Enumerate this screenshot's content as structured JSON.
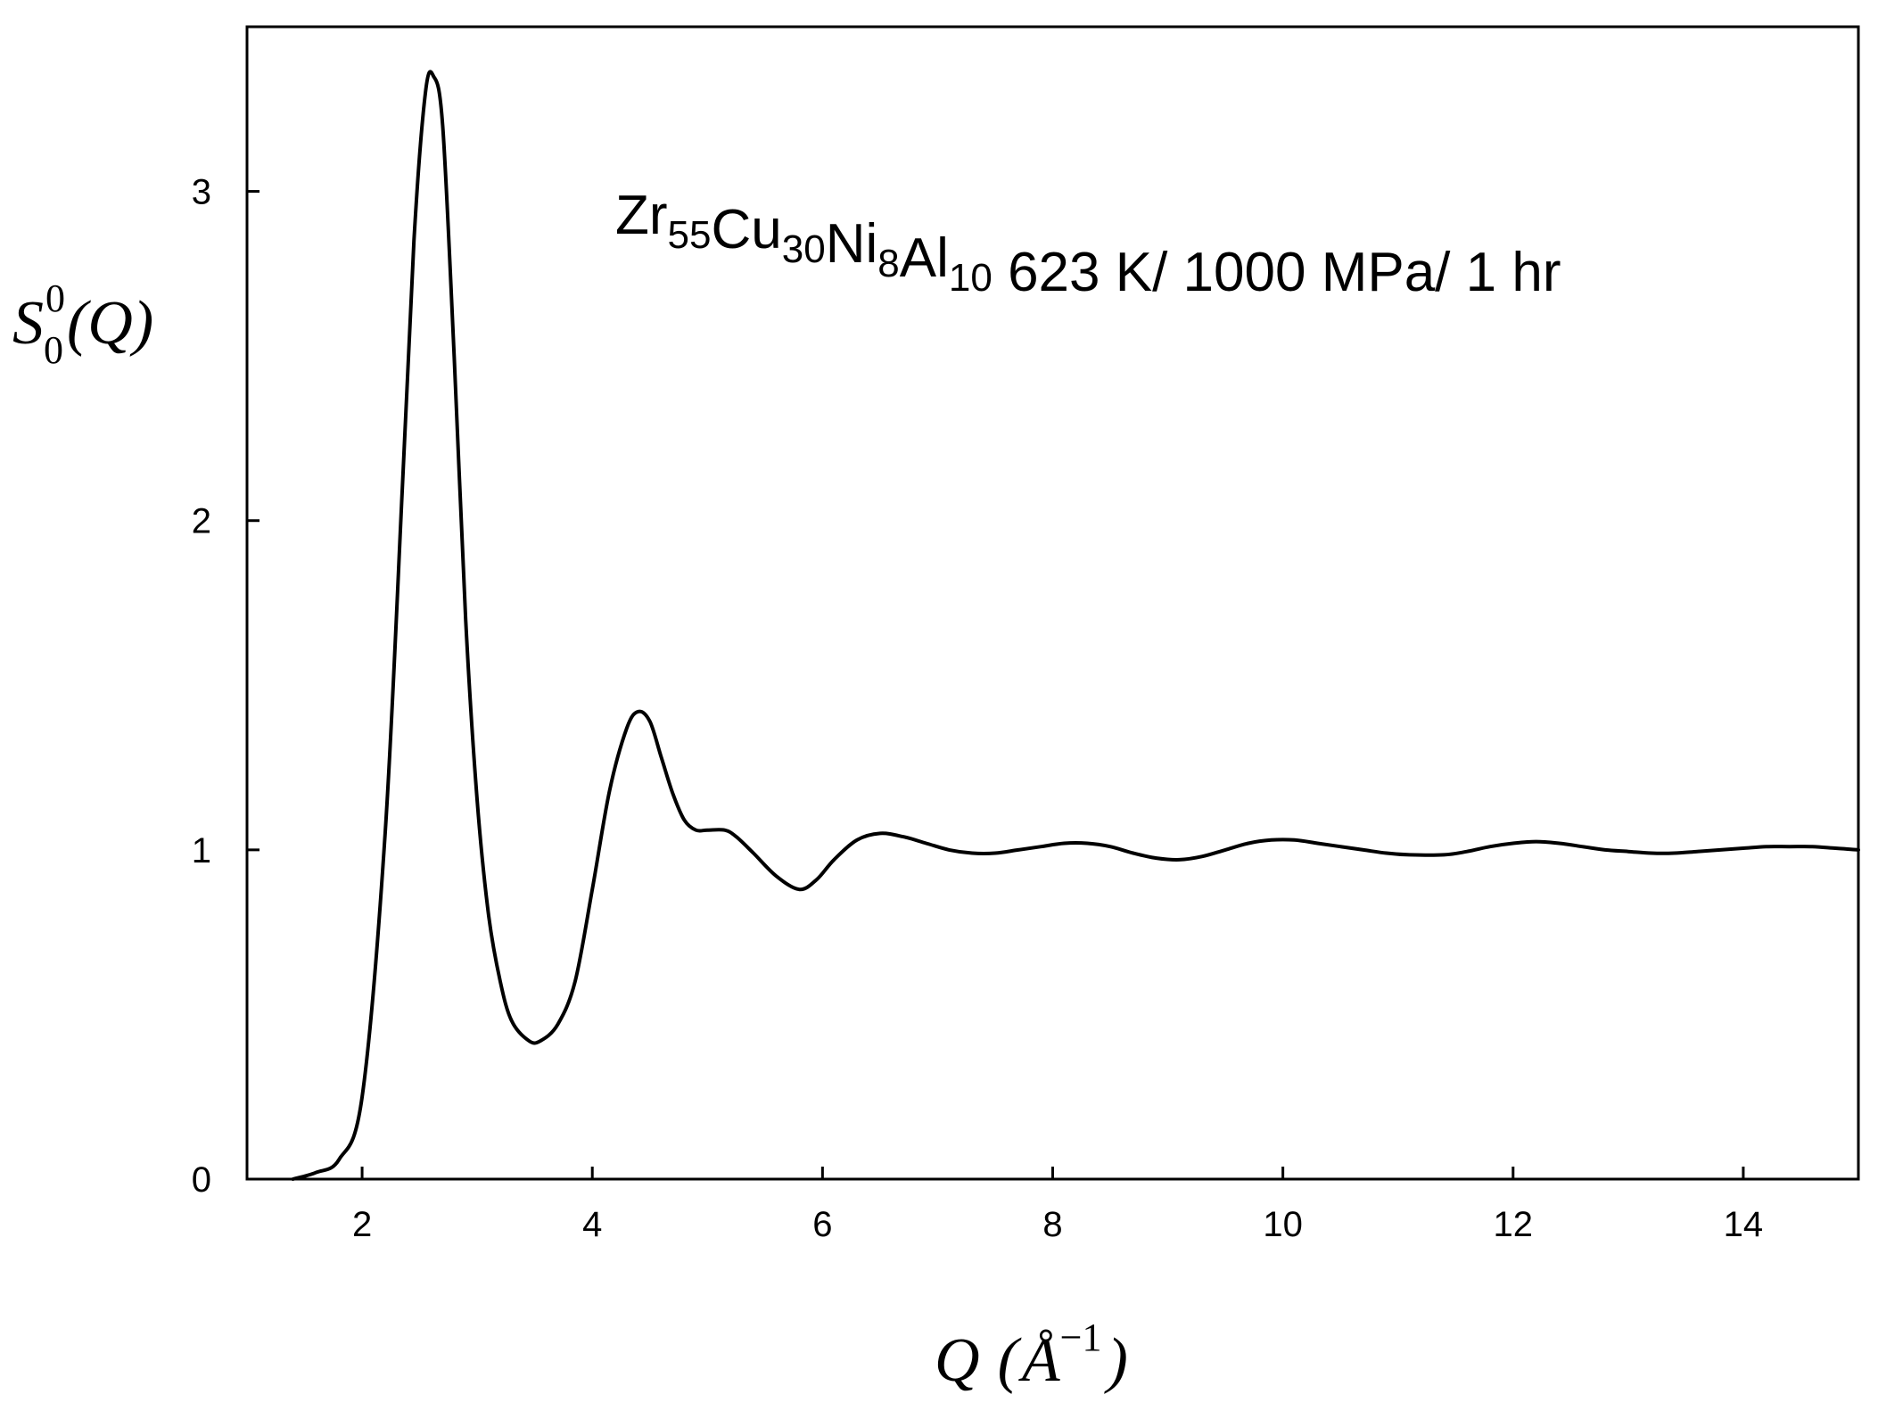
{
  "chart_data": {
    "type": "line",
    "xlabel": {
      "main": "Q",
      "unit": "Å",
      "exp": "−1"
    },
    "ylabel": {
      "main": "S",
      "sub": "0",
      "sup": "0",
      "arg": "(Q)"
    },
    "xlim": [
      1,
      15
    ],
    "ylim": [
      0,
      3.5
    ],
    "xticks": [
      2,
      4,
      6,
      8,
      10,
      12,
      14
    ],
    "yticks": [
      0,
      1,
      2,
      3
    ],
    "grid": false,
    "legend": "none",
    "line_color": "#000000",
    "annotation": [
      {
        "t": "Zr",
        "s": "55"
      },
      {
        "t": "Cu",
        "s": "30"
      },
      {
        "t": "Ni",
        "s": "8"
      },
      {
        "t": "Al",
        "s": "10"
      },
      {
        "t": " 623 K/ 1000 MPa/ 1 hr",
        "s": ""
      }
    ],
    "series": [
      {
        "x": [
          1.4,
          1.6,
          1.8,
          2.0,
          2.2,
          2.35,
          2.45,
          2.55,
          2.62,
          2.7,
          2.8,
          2.9,
          3.0,
          3.1,
          3.2,
          3.3,
          3.45,
          3.55,
          3.7,
          3.85,
          4.0,
          4.15,
          4.3,
          4.4,
          4.5,
          4.6,
          4.7,
          4.8,
          4.9,
          5.0,
          5.15,
          5.25,
          5.4,
          5.6,
          5.8,
          5.95,
          6.1,
          6.3,
          6.5,
          6.7,
          6.9,
          7.1,
          7.3,
          7.5,
          7.7,
          7.9,
          8.1,
          8.3,
          8.5,
          8.7,
          8.9,
          9.1,
          9.3,
          9.5,
          9.7,
          9.9,
          10.1,
          10.3,
          10.5,
          10.7,
          10.9,
          11.1,
          11.4,
          11.6,
          11.8,
          12.0,
          12.2,
          12.4,
          12.6,
          12.8,
          13.0,
          13.2,
          13.4,
          13.6,
          13.8,
          14.0,
          14.2,
          14.4,
          14.6,
          14.8,
          15.0
        ],
        "y": [
          0.0,
          0.02,
          0.06,
          0.25,
          1.05,
          2.1,
          2.85,
          3.3,
          3.35,
          3.2,
          2.5,
          1.7,
          1.15,
          0.8,
          0.6,
          0.48,
          0.42,
          0.42,
          0.47,
          0.6,
          0.88,
          1.18,
          1.37,
          1.42,
          1.39,
          1.28,
          1.17,
          1.09,
          1.06,
          1.06,
          1.06,
          1.04,
          0.99,
          0.92,
          0.88,
          0.91,
          0.97,
          1.03,
          1.05,
          1.04,
          1.02,
          1.0,
          0.99,
          0.99,
          1.0,
          1.01,
          1.02,
          1.02,
          1.01,
          0.99,
          0.975,
          0.97,
          0.98,
          1.0,
          1.02,
          1.03,
          1.03,
          1.02,
          1.01,
          1.0,
          0.99,
          0.985,
          0.985,
          0.995,
          1.01,
          1.02,
          1.025,
          1.02,
          1.01,
          1.0,
          0.995,
          0.99,
          0.99,
          0.995,
          1.0,
          1.005,
          1.01,
          1.01,
          1.01,
          1.005,
          1.0
        ]
      }
    ]
  }
}
